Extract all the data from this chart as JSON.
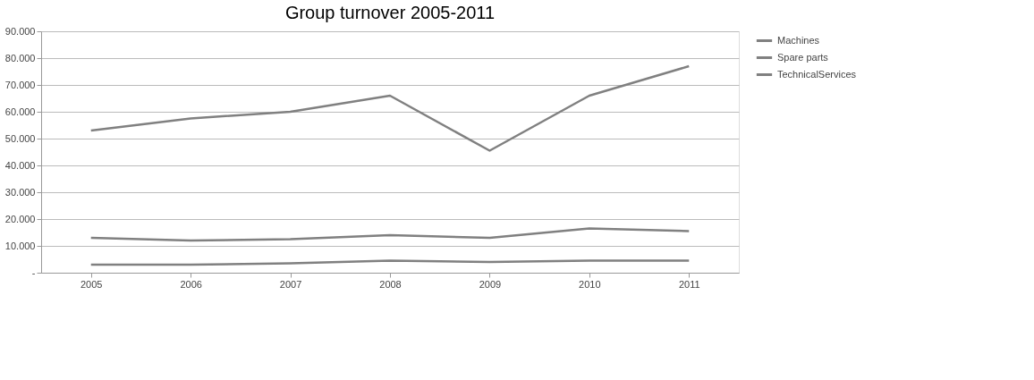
{
  "chart_data": {
    "type": "line",
    "title": "Group turnover 2005-2011",
    "categories": [
      "2005",
      "2006",
      "2007",
      "2008",
      "2009",
      "2010",
      "2011"
    ],
    "series": [
      {
        "name": "Machines",
        "color": "#808080",
        "values": [
          53000,
          57500,
          60000,
          66000,
          45500,
          66000,
          77000
        ]
      },
      {
        "name": "Spare parts",
        "color": "#808080",
        "values": [
          13000,
          12000,
          12500,
          14000,
          13000,
          16500,
          15500
        ]
      },
      {
        "name": "TechnicalServices",
        "color": "#808080",
        "values": [
          3000,
          3000,
          3500,
          4500,
          4000,
          4500,
          4500
        ]
      }
    ],
    "ylim": [
      0,
      90000
    ],
    "yticks": [
      {
        "value": 0,
        "label": "-"
      },
      {
        "value": 10000,
        "label": "10.000"
      },
      {
        "value": 20000,
        "label": "20.000"
      },
      {
        "value": 30000,
        "label": "30.000"
      },
      {
        "value": 40000,
        "label": "40.000"
      },
      {
        "value": 50000,
        "label": "50.000"
      },
      {
        "value": 60000,
        "label": "60.000"
      },
      {
        "value": 70000,
        "label": "70.000"
      },
      {
        "value": 80000,
        "label": "80.000"
      },
      {
        "value": 90000,
        "label": "90.000"
      }
    ],
    "grid": "y",
    "legend": "right",
    "marker": "none",
    "line_style": "solid"
  }
}
